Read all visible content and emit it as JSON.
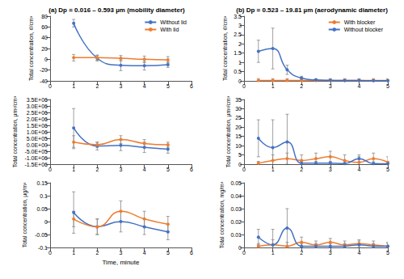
{
  "chart_data": [
    {
      "type": "line",
      "title": "(a) Dp = 0.016 – 0.593 µm (mobility diameter)",
      "y_label": "Total concentration, #/cm³",
      "x": [
        1,
        2,
        3,
        4,
        5
      ],
      "xlim": [
        0,
        6
      ],
      "xticks": [
        0,
        1,
        2,
        3,
        4,
        5,
        6
      ],
      "ylim": [
        -40,
        80
      ],
      "yticks": [
        -40,
        -20,
        0,
        20,
        40,
        60,
        80
      ],
      "grid": false,
      "legend": "top-right",
      "series": [
        {
          "name": "Without lid",
          "color": "#4472c4",
          "marker": "circle",
          "values": [
            67,
            2,
            -11,
            -12,
            -10
          ],
          "errors": [
            7,
            5,
            10,
            8,
            5
          ]
        },
        {
          "name": "With lid",
          "color": "#ed7d31",
          "marker": "circle",
          "values": [
            3,
            3,
            2,
            0,
            -1
          ],
          "errors": [
            6,
            5,
            5,
            6,
            6
          ]
        }
      ]
    },
    {
      "type": "line",
      "title": "(b) Dp = 0.523 – 19.81 µm (aerodynamic diameter)",
      "y_label": "Total concentration, #/cm³",
      "x": [
        0.5,
        1,
        1.5,
        2,
        2.5,
        3,
        3.5,
        4,
        4.5,
        5
      ],
      "xlim": [
        0,
        5
      ],
      "xticks": [
        0,
        1,
        2,
        3,
        4,
        5
      ],
      "ylim": [
        0,
        3.5
      ],
      "yticks": [
        0,
        0.5,
        1,
        1.5,
        2,
        2.5,
        3,
        3.5
      ],
      "grid": false,
      "legend": "top-right",
      "series": [
        {
          "name": "With blocker",
          "color": "#ed7d31",
          "marker": "circle",
          "values": [
            0.02,
            0.02,
            0.02,
            0.02,
            0.02,
            0.02,
            0.02,
            0.02,
            0.02,
            0.02
          ],
          "errors": [
            0.1,
            0.1,
            0.1,
            0.1,
            0.1,
            0.1,
            0.1,
            0.1,
            0.1,
            0.1
          ]
        },
        {
          "name": "Without blocker",
          "color": "#4472c4",
          "marker": "circle",
          "values": [
            1.6,
            1.75,
            0.6,
            0.15,
            0.05,
            0.03,
            0.02,
            0.02,
            0.01,
            0.01
          ],
          "errors": [
            0.6,
            1.1,
            0.25,
            0.1,
            0.05,
            0.05,
            0.05,
            0.05,
            0.05,
            0.05
          ]
        }
      ]
    },
    {
      "type": "line",
      "y_label": "Total concentration, µm²/cm³",
      "x": [
        1,
        2,
        3,
        4,
        5
      ],
      "xlim": [
        0,
        6
      ],
      "xticks": [
        0,
        1,
        2,
        3,
        4,
        5,
        6
      ],
      "ylim": [
        -1500000,
        3500000
      ],
      "yticks": [
        {
          "value": -1500000,
          "label": "-1.5E+06"
        },
        {
          "value": -1000000,
          "label": "-1.0E+06"
        },
        {
          "value": -500000,
          "label": "-5.0E+05"
        },
        {
          "value": 0,
          "label": "0.0E+00"
        },
        {
          "value": 500000,
          "label": "5.0E+05"
        },
        {
          "value": 1000000,
          "label": "1.0E+06"
        },
        {
          "value": 1500000,
          "label": "1.5E+06"
        },
        {
          "value": 2000000,
          "label": "2.0E+06"
        },
        {
          "value": 2500000,
          "label": "2.5E+06"
        },
        {
          "value": 3000000,
          "label": "3.0E+06"
        },
        {
          "value": 3500000,
          "label": "3.5E+06"
        }
      ],
      "grid": false,
      "series": [
        {
          "name": "Without lid",
          "color": "#4472c4",
          "marker": "circle",
          "values": [
            1300000,
            -100000,
            -50000,
            -200000,
            -350000
          ],
          "errors": [
            1500000,
            300000,
            400000,
            400000,
            300000
          ]
        },
        {
          "name": "With lid",
          "color": "#ed7d31",
          "marker": "circle",
          "values": [
            200000,
            0,
            400000,
            100000,
            0
          ],
          "errors": [
            500000,
            200000,
            300000,
            300000,
            200000
          ]
        }
      ]
    },
    {
      "type": "line",
      "y_label": "Total concentration, µm²/cm³",
      "x": [
        0.5,
        1,
        1.5,
        2,
        2.5,
        3,
        3.5,
        4,
        4.5,
        5
      ],
      "xlim": [
        0,
        5
      ],
      "xticks": [
        0,
        1,
        2,
        3,
        4,
        5
      ],
      "ylim": [
        0,
        35
      ],
      "yticks": [
        0,
        5,
        10,
        15,
        20,
        25,
        30,
        35
      ],
      "grid": false,
      "series": [
        {
          "name": "With blocker",
          "color": "#ed7d31",
          "marker": "circle",
          "values": [
            0.5,
            2,
            3,
            2,
            3,
            4,
            2,
            1,
            3,
            1
          ],
          "errors": [
            1,
            3,
            3,
            3,
            3,
            3,
            3,
            3,
            3,
            3
          ]
        },
        {
          "name": "Without blocker",
          "color": "#4472c4",
          "marker": "circle",
          "values": [
            14,
            9,
            12,
            0.5,
            0.5,
            0.5,
            0.3,
            3,
            0.3,
            0.2
          ],
          "errors": [
            10,
            15,
            15,
            1,
            1,
            1,
            1,
            2,
            1,
            1
          ]
        }
      ]
    },
    {
      "type": "line",
      "y_label": "Total concentration, µg/m³",
      "x_label": "Time, minute",
      "x": [
        1,
        2,
        3,
        4,
        5
      ],
      "xlim": [
        0,
        6
      ],
      "xticks": [
        0,
        1,
        2,
        3,
        4,
        5,
        6
      ],
      "ylim": [
        -0.1,
        0.15
      ],
      "yticks": [
        -0.1,
        -0.05,
        0,
        0.05,
        0.1,
        0.15
      ],
      "grid": false,
      "series": [
        {
          "name": "Without lid",
          "color": "#4472c4",
          "marker": "circle",
          "values": [
            0.035,
            -0.02,
            0,
            -0.02,
            -0.04
          ],
          "errors": [
            0.08,
            0.03,
            0.04,
            0.03,
            0.03
          ]
        },
        {
          "name": "With lid",
          "color": "#ed7d31",
          "marker": "circle",
          "values": [
            0.01,
            -0.02,
            0.04,
            0.01,
            -0.01
          ],
          "errors": [
            0.03,
            0.03,
            0.04,
            0.03,
            0.03
          ]
        }
      ]
    },
    {
      "type": "line",
      "y_label": "Total concentration, mg/m³",
      "x": [
        0.5,
        1,
        1.5,
        2,
        2.5,
        3,
        3.5,
        4,
        4.5,
        5
      ],
      "xlim": [
        0,
        5
      ],
      "xticks": [
        0,
        1,
        2,
        3,
        4,
        5
      ],
      "ylim": [
        0,
        0.05
      ],
      "yticks": [
        0,
        0.01,
        0.02,
        0.03,
        0.04,
        0.05
      ],
      "grid": false,
      "series": [
        {
          "name": "With blocker",
          "color": "#ed7d31",
          "marker": "circle",
          "values": [
            0.001,
            0.002,
            0.001,
            0.004,
            0.002,
            0.004,
            0.002,
            0.003,
            0.002,
            0.001
          ],
          "errors": [
            0.002,
            0.004,
            0.003,
            0.004,
            0.003,
            0.003,
            0.003,
            0.003,
            0.003,
            0.003
          ]
        },
        {
          "name": "Without blocker",
          "color": "#4472c4",
          "marker": "circle",
          "values": [
            0.008,
            0.002,
            0.015,
            0.001,
            0.001,
            0.001,
            0.001,
            0.002,
            0.001,
            0.001
          ],
          "errors": [
            0.006,
            0.012,
            0.015,
            0.002,
            0.002,
            0.002,
            0.002,
            0.003,
            0.002,
            0.002
          ]
        }
      ]
    }
  ]
}
